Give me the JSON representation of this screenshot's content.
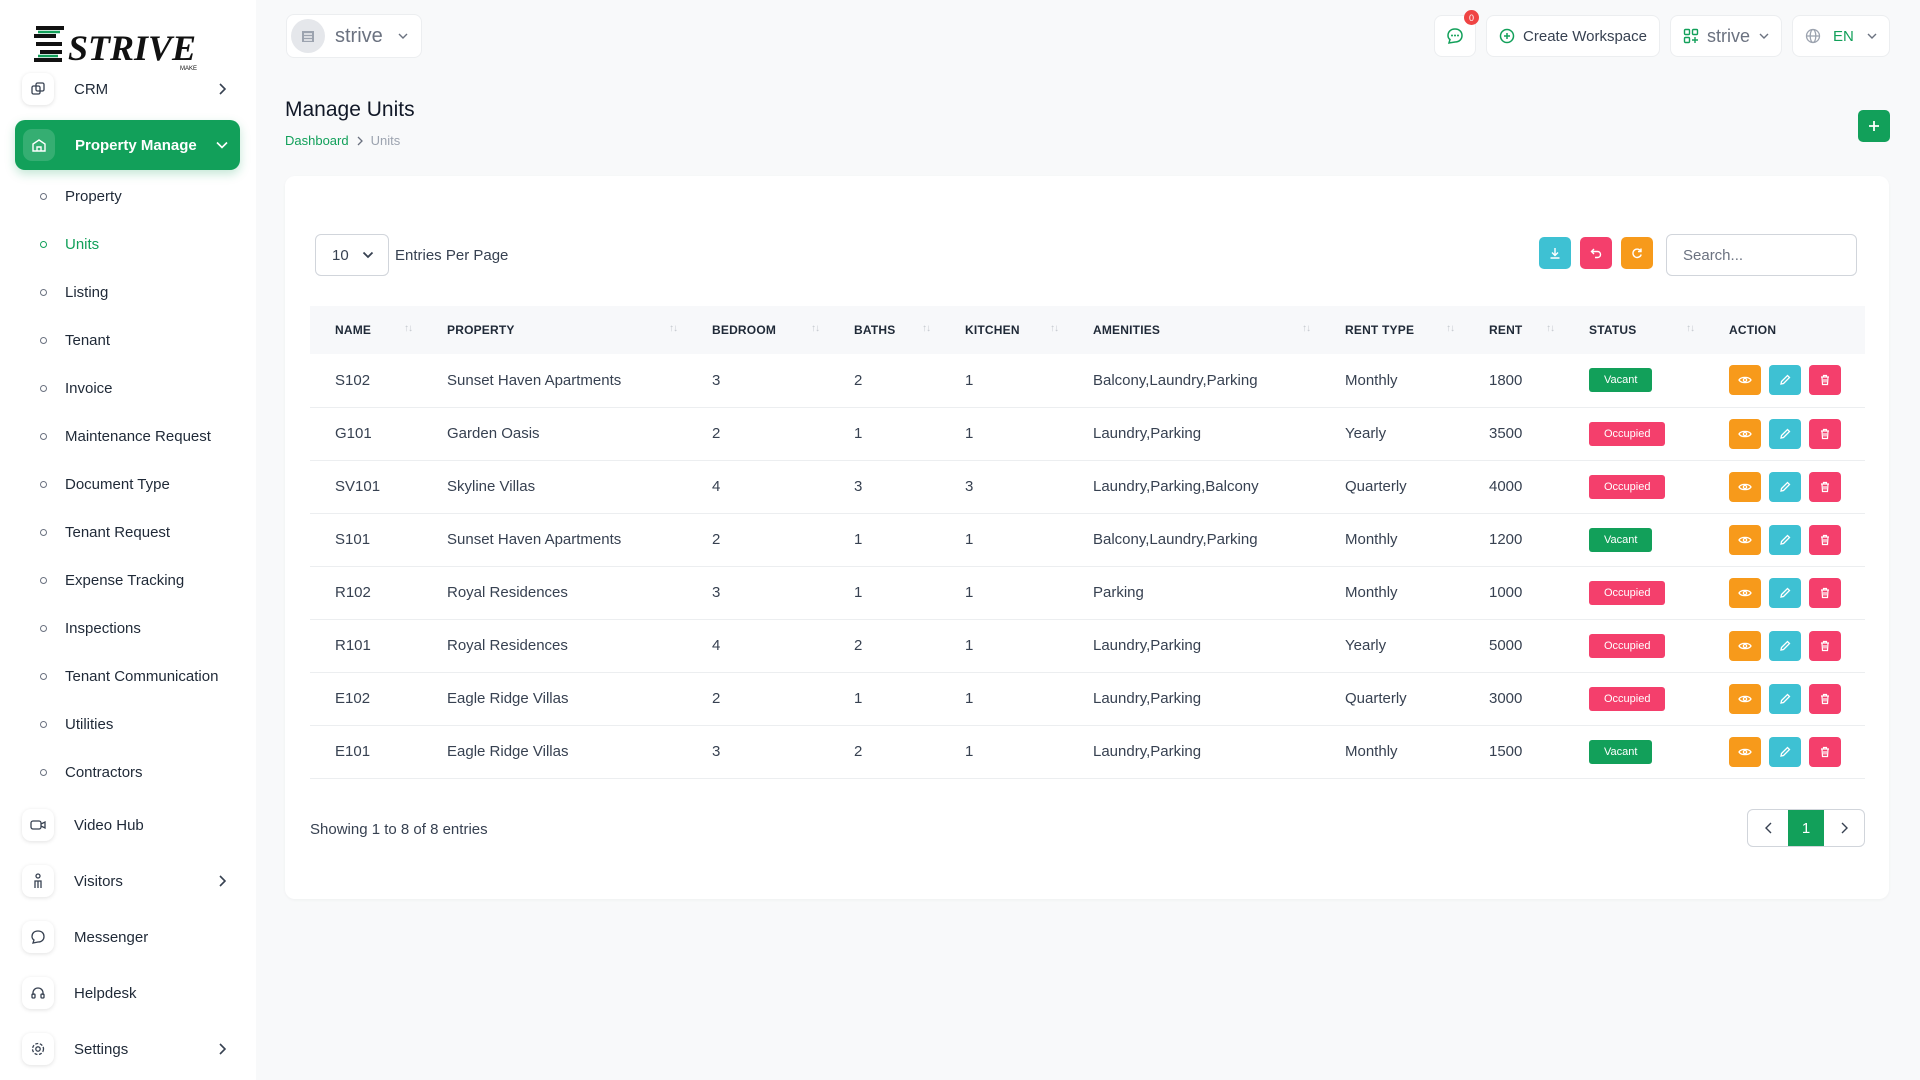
{
  "brand": {
    "name": "STRIVE",
    "tagline": "MAKE"
  },
  "sidebar": {
    "crm_label": "CRM",
    "active_section": "Property Manage",
    "sub_items": [
      {
        "label": "Property"
      },
      {
        "label": "Units",
        "active": true
      },
      {
        "label": "Listing"
      },
      {
        "label": "Tenant"
      },
      {
        "label": "Invoice"
      },
      {
        "label": "Maintenance Request"
      },
      {
        "label": "Document Type"
      },
      {
        "label": "Tenant Request"
      },
      {
        "label": "Expense Tracking"
      },
      {
        "label": "Inspections"
      },
      {
        "label": "Tenant Communication"
      },
      {
        "label": "Utilities"
      },
      {
        "label": "Contractors"
      }
    ],
    "items": [
      {
        "label": "Video Hub",
        "icon": "video-icon"
      },
      {
        "label": "Visitors",
        "icon": "person-icon",
        "has_chevron": true
      },
      {
        "label": "Messenger",
        "icon": "chat-icon"
      },
      {
        "label": "Helpdesk",
        "icon": "headset-icon"
      },
      {
        "label": "Settings",
        "icon": "gear-icon",
        "has_chevron": true
      }
    ]
  },
  "topbar": {
    "workspace": "strive",
    "notification_count": "0",
    "create_workspace": "Create Workspace",
    "workspace_menu": "strive",
    "language": "EN"
  },
  "page": {
    "title": "Manage Units",
    "breadcrumb_home": "Dashboard",
    "breadcrumb_current": "Units"
  },
  "table": {
    "entries_value": "10",
    "entries_label": "Entries Per Page",
    "search_placeholder": "Search...",
    "columns": [
      "NAME",
      "PROPERTY",
      "BEDROOM",
      "BATHS",
      "KITCHEN",
      "AMENITIES",
      "RENT TYPE",
      "RENT",
      "STATUS",
      "ACTION"
    ],
    "rows": [
      {
        "name": "S102",
        "property": "Sunset Haven Apartments",
        "bedroom": "3",
        "baths": "2",
        "kitchen": "1",
        "amenities": "Balcony,Laundry,Parking",
        "rent_type": "Monthly",
        "rent": "1800",
        "status": "Vacant"
      },
      {
        "name": "G101",
        "property": "Garden Oasis",
        "bedroom": "2",
        "baths": "1",
        "kitchen": "1",
        "amenities": "Laundry,Parking",
        "rent_type": "Yearly",
        "rent": "3500",
        "status": "Occupied"
      },
      {
        "name": "SV101",
        "property": "Skyline Villas",
        "bedroom": "4",
        "baths": "3",
        "kitchen": "3",
        "amenities": "Laundry,Parking,Balcony",
        "rent_type": "Quarterly",
        "rent": "4000",
        "status": "Occupied"
      },
      {
        "name": "S101",
        "property": "Sunset Haven Apartments",
        "bedroom": "2",
        "baths": "1",
        "kitchen": "1",
        "amenities": "Balcony,Laundry,Parking",
        "rent_type": "Monthly",
        "rent": "1200",
        "status": "Vacant"
      },
      {
        "name": "R102",
        "property": "Royal Residences",
        "bedroom": "3",
        "baths": "1",
        "kitchen": "1",
        "amenities": "Parking",
        "rent_type": "Monthly",
        "rent": "1000",
        "status": "Occupied"
      },
      {
        "name": "R101",
        "property": "Royal Residences",
        "bedroom": "4",
        "baths": "2",
        "kitchen": "1",
        "amenities": "Laundry,Parking",
        "rent_type": "Yearly",
        "rent": "5000",
        "status": "Occupied"
      },
      {
        "name": "E102",
        "property": "Eagle Ridge Villas",
        "bedroom": "2",
        "baths": "1",
        "kitchen": "1",
        "amenities": "Laundry,Parking",
        "rent_type": "Quarterly",
        "rent": "3000",
        "status": "Occupied"
      },
      {
        "name": "E101",
        "property": "Eagle Ridge Villas",
        "bedroom": "3",
        "baths": "2",
        "kitchen": "1",
        "amenities": "Laundry,Parking",
        "rent_type": "Monthly",
        "rent": "1500",
        "status": "Vacant"
      }
    ],
    "showing": "Showing 1 to 8 of 8 entries",
    "current_page": "1"
  },
  "colors": {
    "primary": "#12a05a",
    "vacant": "#12a05a",
    "occupied": "#f43f6c",
    "view": "#f79a1b",
    "edit": "#3ec1d3",
    "delete": "#f43f6c",
    "download": "#3ec1d3",
    "reset": "#f43f6c",
    "refresh": "#f79a1b"
  }
}
